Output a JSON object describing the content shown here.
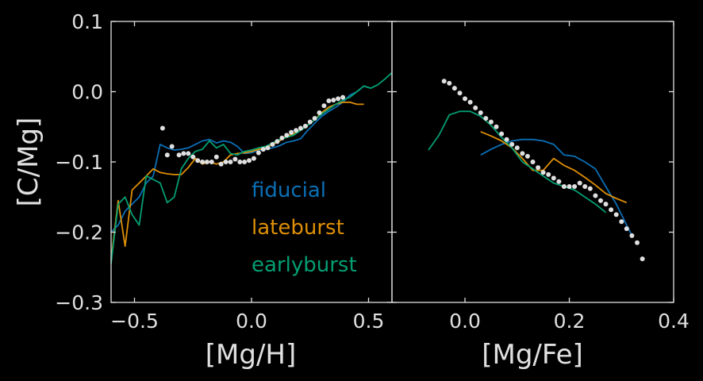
{
  "chart_data": [
    {
      "type": "line",
      "xlabel": "[Mg/H]",
      "ylabel": "[C/Mg]",
      "xlim": [
        -0.6,
        0.6
      ],
      "ylim": [
        -0.3,
        0.1
      ],
      "xticks": [
        "−0.5",
        "0.0",
        "0.5"
      ],
      "xtick_values": [
        -0.5,
        0.0,
        0.5
      ],
      "yticks": [
        "−0.3",
        "−0.2",
        "−0.1",
        "0.0",
        "0.1"
      ],
      "ytick_values": [
        -0.3,
        -0.2,
        -0.1,
        0.0,
        0.1
      ],
      "legend": {
        "placement": "lower-right",
        "entries": [
          "fiducial",
          "lateburst",
          "earlyburst"
        ]
      },
      "series": [
        {
          "name": "fiducial",
          "color": "#0a6fb5",
          "x": [
            -0.6,
            -0.57,
            -0.54,
            -0.51,
            -0.48,
            -0.45,
            -0.42,
            -0.39,
            -0.36,
            -0.33,
            -0.3,
            -0.27,
            -0.24,
            -0.21,
            -0.18,
            -0.15,
            -0.12,
            -0.09,
            -0.06,
            -0.03,
            0.0,
            0.03,
            0.06,
            0.09,
            0.12,
            0.15,
            0.18,
            0.21,
            0.24,
            0.27,
            0.3,
            0.33,
            0.36,
            0.39,
            0.42,
            0.45,
            0.48,
            0.51
          ],
          "y": [
            -0.2,
            -0.19,
            -0.17,
            -0.16,
            -0.15,
            -0.13,
            -0.12,
            -0.075,
            -0.08,
            -0.083,
            -0.082,
            -0.08,
            -0.075,
            -0.07,
            -0.068,
            -0.073,
            -0.07,
            -0.072,
            -0.078,
            -0.088,
            -0.087,
            -0.083,
            -0.082,
            -0.08,
            -0.077,
            -0.072,
            -0.07,
            -0.067,
            -0.055,
            -0.045,
            -0.035,
            -0.028,
            -0.022,
            -0.015,
            -0.005,
            0.0,
            0.008,
            0.005
          ]
        },
        {
          "name": "lateburst",
          "color": "#de8f05",
          "x": [
            -0.6,
            -0.57,
            -0.54,
            -0.51,
            -0.48,
            -0.45,
            -0.42,
            -0.39,
            -0.36,
            -0.33,
            -0.3,
            -0.27,
            -0.24,
            -0.21,
            -0.18,
            -0.15,
            -0.12,
            -0.09,
            -0.06,
            -0.03,
            0.0,
            0.03,
            0.06,
            0.09,
            0.12,
            0.15,
            0.18,
            0.21,
            0.24,
            0.27,
            0.3,
            0.33,
            0.36,
            0.39,
            0.42,
            0.45,
            0.48
          ],
          "y": [
            -0.24,
            -0.155,
            -0.22,
            -0.14,
            -0.13,
            -0.12,
            -0.11,
            -0.115,
            -0.117,
            -0.118,
            -0.118,
            -0.108,
            -0.095,
            -0.103,
            -0.1,
            -0.103,
            -0.1,
            -0.09,
            -0.088,
            -0.087,
            -0.085,
            -0.082,
            -0.08,
            -0.075,
            -0.07,
            -0.063,
            -0.06,
            -0.055,
            -0.048,
            -0.04,
            -0.03,
            -0.022,
            -0.018,
            -0.015,
            -0.015,
            -0.018,
            -0.018
          ]
        },
        {
          "name": "earlyburst",
          "color": "#029e73",
          "x": [
            -0.6,
            -0.57,
            -0.54,
            -0.51,
            -0.48,
            -0.45,
            -0.42,
            -0.39,
            -0.36,
            -0.33,
            -0.3,
            -0.27,
            -0.24,
            -0.21,
            -0.18,
            -0.15,
            -0.12,
            -0.09,
            -0.06,
            -0.03,
            0.0,
            0.03,
            0.06,
            0.09,
            0.12,
            0.15,
            0.18,
            0.21,
            0.24,
            0.27,
            0.3,
            0.33,
            0.36,
            0.39,
            0.42,
            0.45,
            0.48,
            0.51,
            0.54,
            0.57,
            0.6
          ],
          "y": [
            -0.245,
            -0.16,
            -0.15,
            -0.175,
            -0.19,
            -0.12,
            -0.125,
            -0.13,
            -0.158,
            -0.15,
            -0.11,
            -0.095,
            -0.085,
            -0.082,
            -0.07,
            -0.08,
            -0.075,
            -0.088,
            -0.09,
            -0.085,
            -0.083,
            -0.08,
            -0.078,
            -0.073,
            -0.068,
            -0.065,
            -0.062,
            -0.055,
            -0.048,
            -0.04,
            -0.032,
            -0.025,
            -0.018,
            -0.012,
            -0.008,
            0.0,
            0.008,
            0.005,
            0.01,
            0.018,
            0.027
          ]
        },
        {
          "name": "",
          "role": "observational data points",
          "color": "#e0e0e0",
          "style": "dots",
          "x": [
            -0.38,
            -0.36,
            -0.34,
            -0.31,
            -0.29,
            -0.27,
            -0.25,
            -0.23,
            -0.21,
            -0.19,
            -0.17,
            -0.15,
            -0.13,
            -0.11,
            -0.09,
            -0.07,
            -0.05,
            -0.03,
            -0.01,
            0.01,
            0.03,
            0.05,
            0.07,
            0.09,
            0.11,
            0.13,
            0.15,
            0.17,
            0.19,
            0.21,
            0.23,
            0.25,
            0.27,
            0.29,
            0.31,
            0.33,
            0.35,
            0.37,
            0.39
          ],
          "y": [
            -0.052,
            -0.09,
            -0.078,
            -0.09,
            -0.088,
            -0.088,
            -0.093,
            -0.098,
            -0.1,
            -0.1,
            -0.1,
            -0.093,
            -0.103,
            -0.1,
            -0.1,
            -0.096,
            -0.1,
            -0.1,
            -0.098,
            -0.095,
            -0.087,
            -0.082,
            -0.08,
            -0.075,
            -0.071,
            -0.066,
            -0.062,
            -0.058,
            -0.055,
            -0.052,
            -0.049,
            -0.043,
            -0.038,
            -0.03,
            -0.02,
            -0.013,
            -0.012,
            -0.01,
            -0.008
          ]
        }
      ]
    },
    {
      "type": "line",
      "xlabel": "[Mg/Fe]",
      "ylabel": "",
      "xlim": [
        -0.14,
        0.4
      ],
      "ylim": [
        -0.3,
        0.1
      ],
      "xticks": [
        "0.0",
        "0.2",
        "0.4"
      ],
      "xtick_values": [
        0.0,
        0.2,
        0.4
      ],
      "series": [
        {
          "name": "fiducial",
          "color": "#0a6fb5",
          "x": [
            0.03,
            0.05,
            0.07,
            0.09,
            0.11,
            0.13,
            0.15,
            0.17,
            0.19,
            0.21,
            0.23,
            0.25,
            0.27,
            0.29,
            0.31,
            0.32
          ],
          "y": [
            -0.09,
            -0.082,
            -0.075,
            -0.07,
            -0.068,
            -0.068,
            -0.07,
            -0.075,
            -0.09,
            -0.092,
            -0.1,
            -0.11,
            -0.135,
            -0.16,
            -0.19,
            -0.205
          ]
        },
        {
          "name": "lateburst",
          "color": "#de8f05",
          "x": [
            0.03,
            0.05,
            0.07,
            0.09,
            0.11,
            0.13,
            0.15,
            0.17,
            0.19,
            0.21,
            0.23,
            0.25,
            0.27,
            0.29,
            0.31
          ],
          "y": [
            -0.057,
            -0.063,
            -0.07,
            -0.08,
            -0.095,
            -0.112,
            -0.112,
            -0.095,
            -0.105,
            -0.112,
            -0.122,
            -0.133,
            -0.145,
            -0.152,
            -0.158
          ]
        },
        {
          "name": "earlyburst",
          "color": "#029e73",
          "x": [
            -0.07,
            -0.05,
            -0.03,
            -0.01,
            0.01,
            0.03,
            0.05,
            0.07,
            0.09,
            0.11,
            0.13,
            0.15,
            0.17,
            0.19,
            0.21,
            0.23,
            0.25,
            0.27
          ],
          "y": [
            -0.083,
            -0.062,
            -0.033,
            -0.028,
            -0.028,
            -0.035,
            -0.048,
            -0.065,
            -0.08,
            -0.1,
            -0.11,
            -0.12,
            -0.13,
            -0.135,
            -0.14,
            -0.15,
            -0.16,
            -0.172
          ]
        },
        {
          "name": "",
          "role": "observational data points",
          "color": "#e0e0e0",
          "style": "dots",
          "x": [
            -0.04,
            -0.03,
            -0.02,
            -0.01,
            0.0,
            0.01,
            0.02,
            0.03,
            0.04,
            0.05,
            0.06,
            0.07,
            0.08,
            0.09,
            0.1,
            0.11,
            0.12,
            0.13,
            0.14,
            0.15,
            0.16,
            0.17,
            0.18,
            0.19,
            0.2,
            0.21,
            0.22,
            0.23,
            0.24,
            0.25,
            0.26,
            0.27,
            0.28,
            0.29,
            0.3,
            0.31,
            0.32,
            0.33,
            0.34
          ],
          "y": [
            0.015,
            0.012,
            0.005,
            -0.002,
            -0.01,
            -0.015,
            -0.023,
            -0.03,
            -0.038,
            -0.043,
            -0.05,
            -0.06,
            -0.068,
            -0.075,
            -0.08,
            -0.088,
            -0.092,
            -0.1,
            -0.108,
            -0.115,
            -0.118,
            -0.123,
            -0.128,
            -0.135,
            -0.135,
            -0.135,
            -0.13,
            -0.135,
            -0.138,
            -0.148,
            -0.155,
            -0.16,
            -0.168,
            -0.175,
            -0.185,
            -0.195,
            -0.205,
            -0.215,
            -0.238
          ]
        }
      ]
    }
  ]
}
